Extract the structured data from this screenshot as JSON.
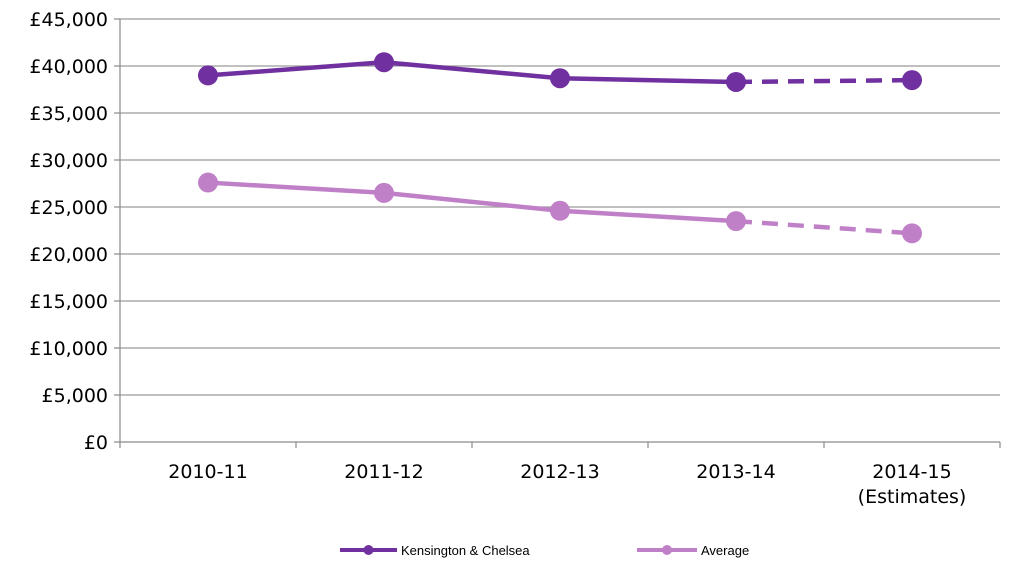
{
  "chart_data": {
    "type": "line",
    "categories": [
      "2010-11",
      "2011-12",
      "2012-13",
      "2013-14",
      "2014-15 (Estimates)"
    ],
    "category_lines": [
      [
        "2010-11"
      ],
      [
        "2011-12"
      ],
      [
        "2012-13"
      ],
      [
        "2013-14"
      ],
      [
        "2014-15",
        "(Estimates)"
      ]
    ],
    "y_ticks": [
      "£0",
      "£5,000",
      "£10,000",
      "£15,000",
      "£20,000",
      "£25,000",
      "£30,000",
      "£35,000",
      "£40,000",
      "£45,000"
    ],
    "ylim": [
      0,
      45000
    ],
    "grid": true,
    "legend": "bottom",
    "estimated_from_index": 3,
    "series": [
      {
        "name": "Kensington & Chelsea",
        "color": "#7030a0",
        "values": [
          39000,
          40400,
          38700,
          38300,
          38500
        ]
      },
      {
        "name": "Average",
        "color": "#c080c8",
        "values": [
          27600,
          26500,
          24600,
          23500,
          22200
        ]
      }
    ]
  }
}
